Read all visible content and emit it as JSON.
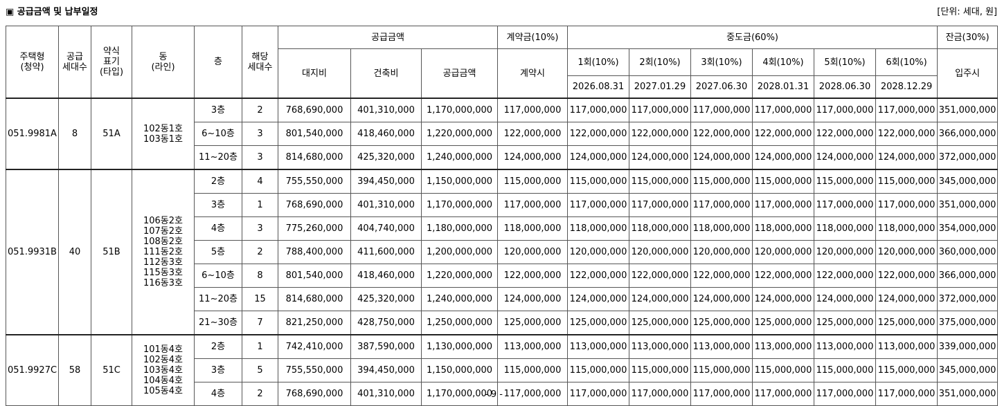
{
  "header": {
    "title": "▣ 공급금액 및 납부일정",
    "unit": "[단위: 세대, 원]"
  },
  "columns": {
    "housing_type": "주택형\n(청약)",
    "supply_units": "공급\n세대수",
    "type_label": "약식\n표기\n(타입)",
    "dong": "동\n(라인)",
    "floor": "층",
    "units": "해당\n세대수",
    "supply_price_group": "공급금액",
    "land": "대지비",
    "building": "건축비",
    "supply_price": "공급금액",
    "deposit_group": "계약금(10%)",
    "deposit_when": "계약시",
    "interim_group": "중도금(60%)",
    "interim": [
      {
        "label": "1회(10%)",
        "date": "2026.08.31"
      },
      {
        "label": "2회(10%)",
        "date": "2027.01.29"
      },
      {
        "label": "3회(10%)",
        "date": "2027.06.30"
      },
      {
        "label": "4회(10%)",
        "date": "2028.01.31"
      },
      {
        "label": "5회(10%)",
        "date": "2028.06.30"
      },
      {
        "label": "6회(10%)",
        "date": "2028.12.29"
      }
    ],
    "balance_group": "잔금(30%)",
    "balance_when": "입주시"
  },
  "groups": [
    {
      "housing_type": "051.9981A",
      "supply_units": "8",
      "type": "51A",
      "dong": "102동1호\n103동1호",
      "rows": [
        {
          "floor": "3층",
          "units": "2",
          "land": "768,690,000",
          "building": "401,310,000",
          "price": "1,170,000,000",
          "deposit": "117,000,000",
          "interim": "117,000,000",
          "balance": "351,000,000"
        },
        {
          "floor": "6~10층",
          "units": "3",
          "land": "801,540,000",
          "building": "418,460,000",
          "price": "1,220,000,000",
          "deposit": "122,000,000",
          "interim": "122,000,000",
          "balance": "366,000,000"
        },
        {
          "floor": "11~20층",
          "units": "3",
          "land": "814,680,000",
          "building": "425,320,000",
          "price": "1,240,000,000",
          "deposit": "124,000,000",
          "interim": "124,000,000",
          "balance": "372,000,000"
        }
      ]
    },
    {
      "housing_type": "051.9931B",
      "supply_units": "40",
      "type": "51B",
      "dong": "106동2호\n107동2호\n108동2호\n111동2호\n112동3호\n115동3호\n116동3호",
      "rows": [
        {
          "floor": "2층",
          "units": "4",
          "land": "755,550,000",
          "building": "394,450,000",
          "price": "1,150,000,000",
          "deposit": "115,000,000",
          "interim": "115,000,000",
          "balance": "345,000,000"
        },
        {
          "floor": "3층",
          "units": "1",
          "land": "768,690,000",
          "building": "401,310,000",
          "price": "1,170,000,000",
          "deposit": "117,000,000",
          "interim": "117,000,000",
          "balance": "351,000,000"
        },
        {
          "floor": "4층",
          "units": "3",
          "land": "775,260,000",
          "building": "404,740,000",
          "price": "1,180,000,000",
          "deposit": "118,000,000",
          "interim": "118,000,000",
          "balance": "354,000,000"
        },
        {
          "floor": "5층",
          "units": "2",
          "land": "788,400,000",
          "building": "411,600,000",
          "price": "1,200,000,000",
          "deposit": "120,000,000",
          "interim": "120,000,000",
          "balance": "360,000,000"
        },
        {
          "floor": "6~10층",
          "units": "8",
          "land": "801,540,000",
          "building": "418,460,000",
          "price": "1,220,000,000",
          "deposit": "122,000,000",
          "interim": "122,000,000",
          "balance": "366,000,000"
        },
        {
          "floor": "11~20층",
          "units": "15",
          "land": "814,680,000",
          "building": "425,320,000",
          "price": "1,240,000,000",
          "deposit": "124,000,000",
          "interim": "124,000,000",
          "balance": "372,000,000"
        },
        {
          "floor": "21~30층",
          "units": "7",
          "land": "821,250,000",
          "building": "428,750,000",
          "price": "1,250,000,000",
          "deposit": "125,000,000",
          "interim": "125,000,000",
          "balance": "375,000,000"
        }
      ]
    },
    {
      "housing_type": "051.9927C",
      "supply_units": "58",
      "type": "51C",
      "dong": "101동4호\n102동4호\n103동4호\n104동4호\n105동4호",
      "rows": [
        {
          "floor": "2층",
          "units": "1",
          "land": "742,410,000",
          "building": "387,590,000",
          "price": "1,130,000,000",
          "deposit": "113,000,000",
          "interim": "113,000,000",
          "balance": "339,000,000"
        },
        {
          "floor": "3층",
          "units": "5",
          "land": "755,550,000",
          "building": "394,450,000",
          "price": "1,150,000,000",
          "deposit": "115,000,000",
          "interim": "115,000,000",
          "balance": "345,000,000"
        },
        {
          "floor": "4층",
          "units": "2",
          "land": "768,690,000",
          "building": "401,310,000",
          "price": "1,170,000,000",
          "deposit": "117,000,000",
          "interim": "117,000,000",
          "balance": "351,000,000"
        }
      ]
    }
  ],
  "footer": {
    "page": "- 9 -"
  }
}
